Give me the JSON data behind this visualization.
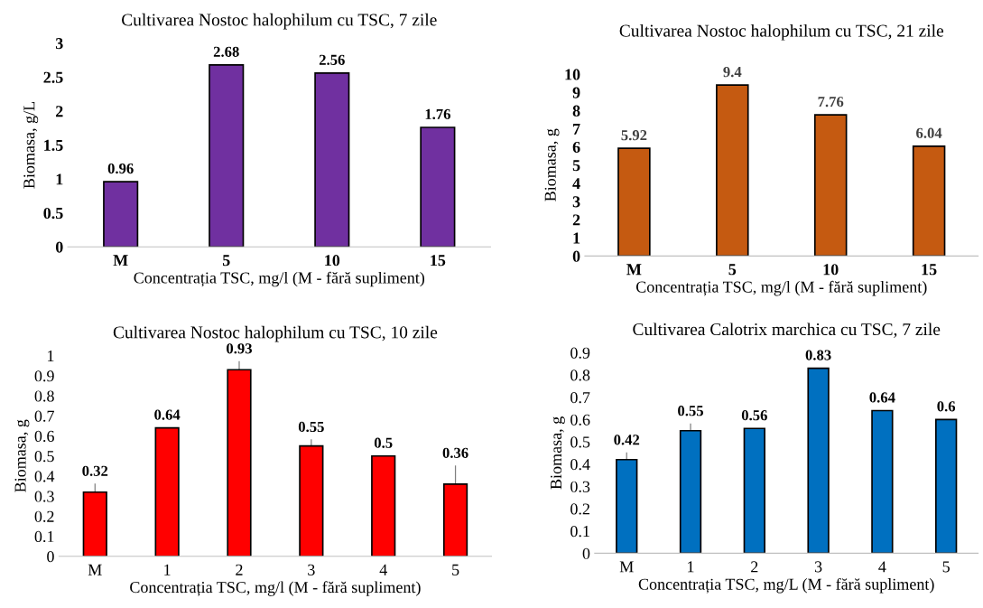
{
  "chart_data": [
    {
      "type": "bar",
      "title": "Cultivarea Nostoc halophilum cu TSC, 7 zile",
      "xlabel": "Concentrația TSC, mg/l (M - fără supliment)",
      "ylabel": "Biomasa, g/L",
      "categories": [
        "M",
        "5",
        "10",
        "15"
      ],
      "values": [
        0.96,
        2.68,
        2.56,
        1.76
      ],
      "color": "#7030a0",
      "ylim": [
        0,
        3
      ],
      "yticks": [
        0,
        0.5,
        1,
        1.5,
        2,
        2.5,
        3
      ],
      "data_labels": true,
      "grid": false
    },
    {
      "type": "bar",
      "title": "Cultivarea Nostoc halophilum cu TSC, 21 zile",
      "xlabel": "Concentrația TSC, mg/l (M - fără supliment)",
      "ylabel": "Biomasa, g",
      "categories": [
        "M",
        "5",
        "10",
        "15"
      ],
      "values": [
        5.92,
        9.4,
        7.76,
        6.04
      ],
      "color": "#c55a11",
      "ylim": [
        0,
        10
      ],
      "yticks": [
        0,
        1,
        2,
        3,
        4,
        5,
        6,
        7,
        8,
        9,
        10
      ],
      "data_labels": true,
      "grid": false
    },
    {
      "type": "bar",
      "title": "Cultivarea Nostoc halophilum cu TSC, 10 zile",
      "xlabel": "Concentrația TSC, mg/l (M - fără supliment)",
      "ylabel": "Biomasa, g",
      "categories": [
        "M",
        "1",
        "2",
        "3",
        "4",
        "5"
      ],
      "values": [
        0.32,
        0.64,
        0.93,
        0.55,
        0.5,
        0.36
      ],
      "errors": [
        [
          0.32,
          0.36
        ],
        null,
        [
          0.93,
          0.97
        ],
        [
          0.55,
          0.58
        ],
        null,
        [
          0.36,
          0.45
        ]
      ],
      "color": "#ff0000",
      "ylim": [
        0,
        1
      ],
      "yticks": [
        0,
        0.1,
        0.2,
        0.3,
        0.4,
        0.5,
        0.6,
        0.7,
        0.8,
        0.9,
        1
      ],
      "data_labels": true,
      "grid": false
    },
    {
      "type": "bar",
      "title": "Cultivarea Calotrix marchica cu TSC, 7 zile",
      "xlabel": "Concentrația TSC, mg/L (M - fără supliment)",
      "ylabel": "Biomasa, g",
      "categories": [
        "M",
        "1",
        "2",
        "3",
        "4",
        "5"
      ],
      "values": [
        0.42,
        0.55,
        0.56,
        0.83,
        0.64,
        0.6
      ],
      "errors": [
        [
          0.42,
          0.45
        ],
        [
          0.55,
          0.58
        ],
        null,
        null,
        null,
        null
      ],
      "color": "#0070c0",
      "ylim": [
        0,
        0.9
      ],
      "yticks": [
        0,
        0.1,
        0.2,
        0.3,
        0.4,
        0.5,
        0.6,
        0.7,
        0.8,
        0.9
      ],
      "data_labels": true,
      "grid": false
    }
  ]
}
